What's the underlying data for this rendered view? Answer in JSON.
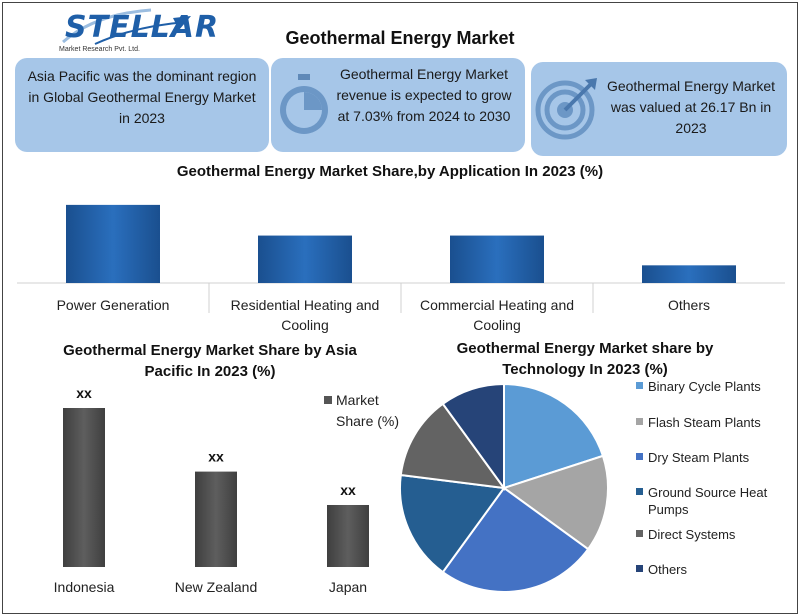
{
  "logo": {
    "word": "STELLAR",
    "subtitle": "Market Research Pvt. Ltd."
  },
  "title": "Geothermal Energy Market",
  "cards": [
    {
      "text": "Asia Pacific was the dominant region in Global Geothermal Energy Market in 2023",
      "icon": "none"
    },
    {
      "text": "Geothermal Energy Market revenue is expected to grow at 7.03% from 2024 to 2030",
      "icon": "stopwatch-icon"
    },
    {
      "text": "Geothermal Energy Market was valued at 26.17 Bn in 2023",
      "icon": "target-icon"
    }
  ],
  "colors": {
    "card_bg": "#a6c6e8",
    "bar_blue": "#1f5fa8",
    "bar_gray": "#555555"
  },
  "chart_data": [
    {
      "type": "bar",
      "title": "Geothermal Energy Market Share,by Application In 2023 (%)",
      "categories": [
        "Power Generation",
        "Residential Heating and Cooling",
        "Commercial Heating and Cooling",
        "Others"
      ],
      "category_lines": [
        [
          "Power Generation"
        ],
        [
          "Residential Heating and",
          "Cooling"
        ],
        [
          "Commercial Heating and",
          "Cooling"
        ],
        [
          "Others"
        ]
      ],
      "values": [
        84,
        51,
        51,
        19
      ],
      "ylim": [
        0,
        100
      ]
    },
    {
      "type": "bar",
      "title": "Geothermal Energy Market Share by Asia Pacific In 2023 (%)",
      "title_lines": [
        "Geothermal Energy Market Share by Asia",
        "Pacific In 2023 (%)"
      ],
      "categories": [
        "Indonesia",
        "New Zealand",
        "Japan"
      ],
      "values": [
        100,
        60,
        39
      ],
      "data_labels": [
        "xx",
        "xx",
        "xx"
      ],
      "ylim": [
        0,
        100
      ],
      "legend": {
        "label": "Market Share (%)",
        "lines": [
          "Market",
          "Share (%)"
        ],
        "position": "right"
      }
    },
    {
      "type": "pie",
      "title": "Geothermal Energy Market share by Technology In 2023 (%)",
      "title_lines": [
        "Geothermal Energy Market share by",
        "Technology In 2023 (%)"
      ],
      "slices": [
        {
          "label": "Binary Cycle Plants",
          "lines": [
            "Binary Cycle Plants"
          ],
          "value": 20,
          "color": "#5b9bd5"
        },
        {
          "label": "Flash Steam Plants",
          "lines": [
            "Flash Steam Plants"
          ],
          "value": 15,
          "color": "#a5a5a5"
        },
        {
          "label": "Dry Steam Plants",
          "lines": [
            "Dry Steam Plants"
          ],
          "value": 25,
          "color": "#4472c4"
        },
        {
          "label": "Ground Source Heat Pumps",
          "lines": [
            "Ground Source Heat",
            "Pumps"
          ],
          "value": 17,
          "color": "#255e91"
        },
        {
          "label": "Direct Systems",
          "lines": [
            "Direct Systems"
          ],
          "value": 13,
          "color": "#636363"
        },
        {
          "label": "Others",
          "lines": [
            "Others"
          ],
          "value": 10,
          "color": "#264478"
        }
      ],
      "legend": {
        "position": "right"
      }
    }
  ]
}
